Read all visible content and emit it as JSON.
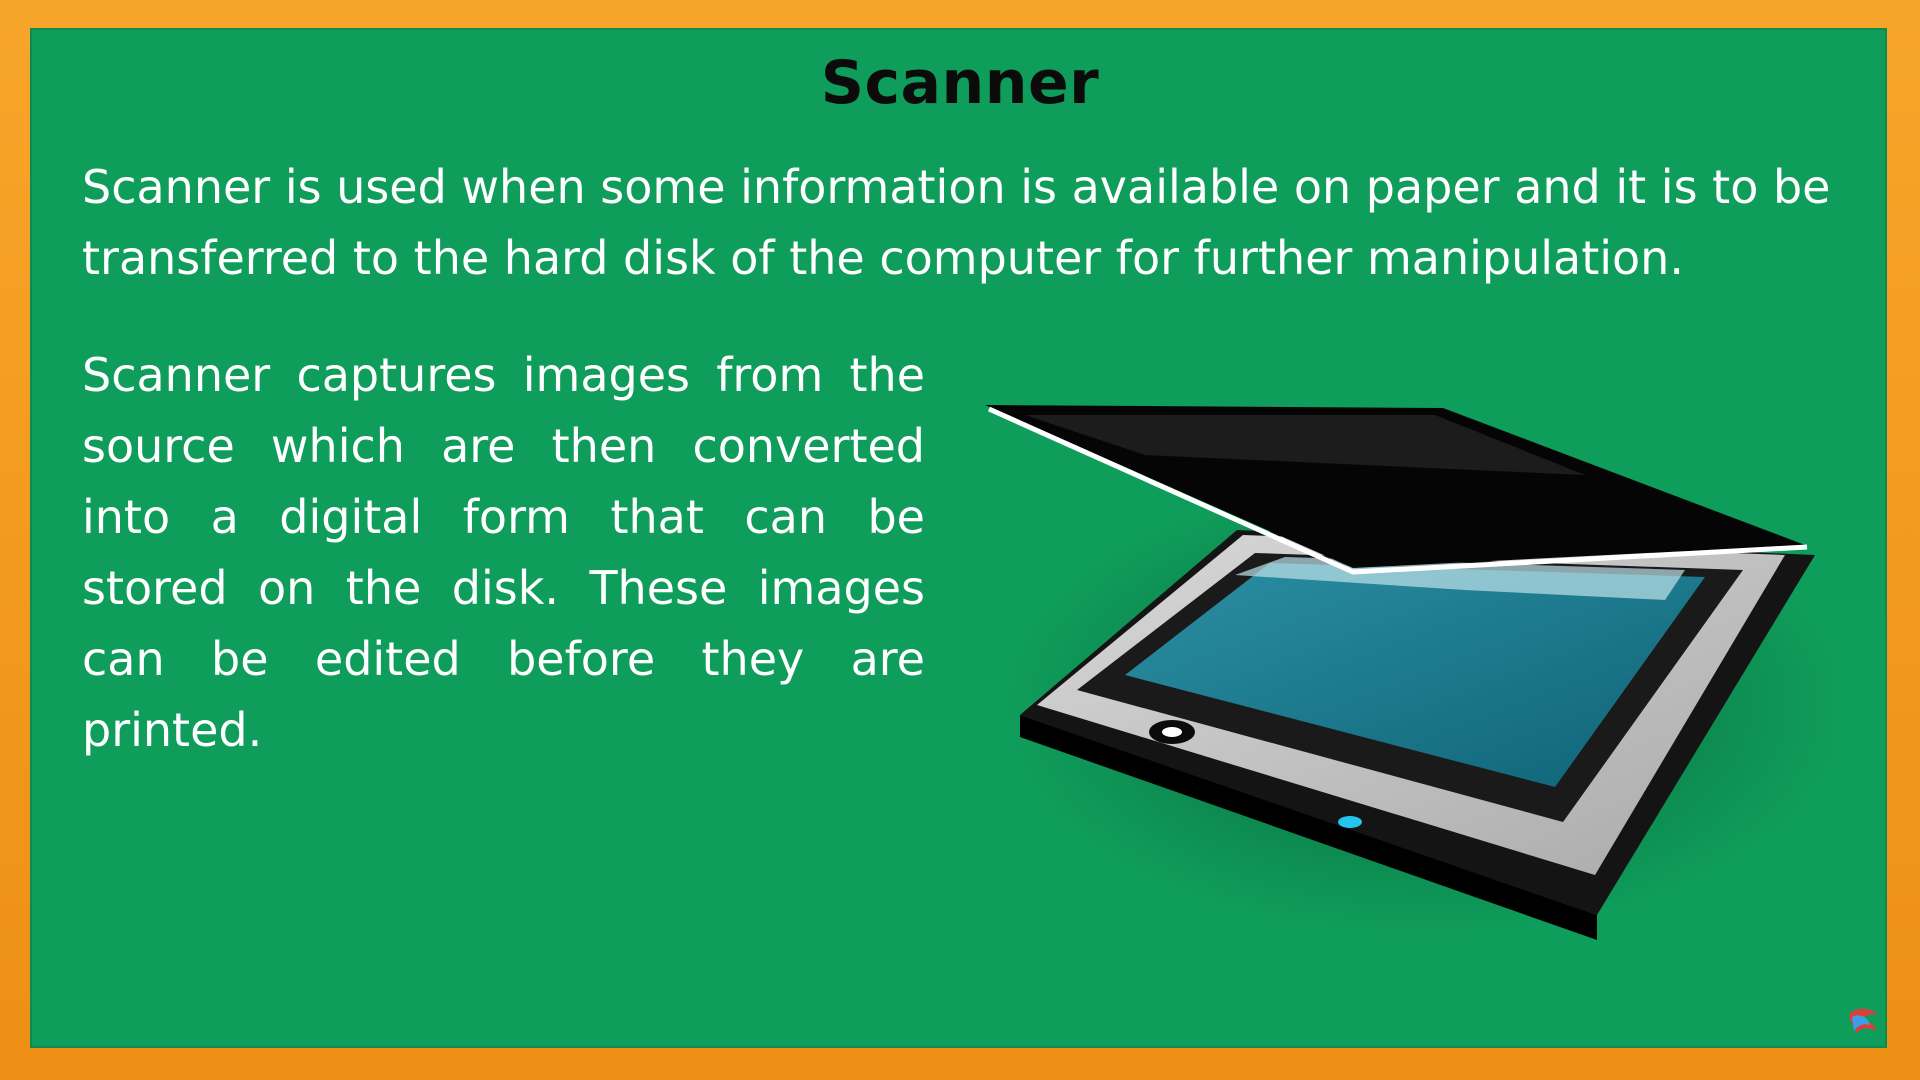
{
  "slide": {
    "title": "Scanner",
    "paragraph1": "Scanner is used when some information is available on paper and it is to be transferred to the hard disk of the computer for further manipulation.",
    "paragraph2": "Scanner captures images from the source which are then converted into a digital form that can be stored on the disk. These images can be edited before they are printed."
  },
  "colors": {
    "frame": "#f39a1f",
    "board": "#0f9d5b",
    "title_text": "#0b0b0b",
    "body_text": "#ffffff"
  },
  "icons": {
    "illustration": "flatbed-scanner-icon",
    "corner_logo": "channel-logo-icon"
  }
}
